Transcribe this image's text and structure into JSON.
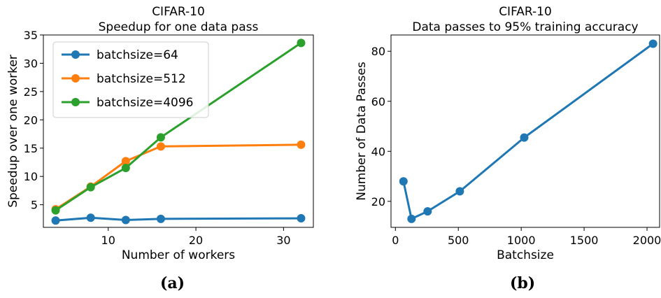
{
  "chart_data": [
    {
      "type": "line",
      "title": "CIFAR-10",
      "subtitle": "Speedup for one data pass",
      "xlabel": "Number of workers",
      "ylabel": "Speedup over one worker",
      "xlim": [
        2.6,
        33.4
      ],
      "ylim": [
        1.0,
        35.0
      ],
      "xticks": [
        10,
        20,
        30
      ],
      "yticks": [
        5,
        10,
        15,
        20,
        25,
        30,
        35
      ],
      "grid": false,
      "legend_position": "top-left",
      "series": [
        {
          "name": "batchsize=64",
          "color": "#1f77b4",
          "x": [
            4,
            8,
            12,
            16,
            32
          ],
          "y": [
            2.2,
            2.7,
            2.3,
            2.5,
            2.6
          ]
        },
        {
          "name": "batchsize=512",
          "color": "#ff7f0e",
          "x": [
            4,
            8,
            12,
            16,
            32
          ],
          "y": [
            4.2,
            8.2,
            12.7,
            15.3,
            15.6
          ]
        },
        {
          "name": "batchsize=4096",
          "color": "#2ca02c",
          "x": [
            4,
            8,
            12,
            16,
            32
          ],
          "y": [
            4.0,
            8.1,
            11.5,
            16.9,
            33.6
          ]
        }
      ]
    },
    {
      "type": "line",
      "title": "CIFAR-10",
      "subtitle": "Data passes to 95% training accuracy",
      "xlabel": "Batchsize",
      "ylabel": "Number of Data Passes",
      "xlim": [
        -35,
        2100
      ],
      "ylim": [
        9.6,
        86.5
      ],
      "xticks": [
        0,
        500,
        1000,
        1500,
        2000
      ],
      "yticks": [
        20,
        40,
        60,
        80
      ],
      "grid": false,
      "series": [
        {
          "color": "#1f77b4",
          "x": [
            64,
            128,
            256,
            512,
            1024,
            2048
          ],
          "y": [
            28,
            13,
            16,
            24,
            45.5,
            83
          ]
        }
      ]
    }
  ],
  "captions": [
    "(a)",
    "(b)"
  ]
}
